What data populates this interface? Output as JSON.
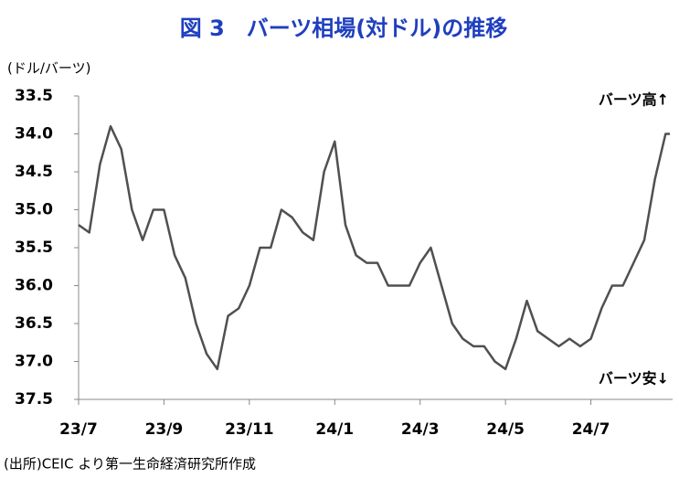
{
  "chart_data": {
    "type": "line",
    "title": "図 3　バーツ相場(対ドル)の推移",
    "y_label": "(ドル/バーツ)",
    "annotations": [
      "バーツ高↑",
      "バーツ安↓"
    ],
    "source": "(出所)CEIC より第一生命経済研究所作成",
    "y_inverted": true,
    "ylim": [
      33.5,
      37.5
    ],
    "yticks": [
      33.5,
      {
        "value": 34,
        "label": "34.0"
      },
      34.5,
      {
        "value": 35,
        "label": "35.0"
      },
      35.5,
      {
        "value": 36,
        "label": "36.0"
      },
      36.5,
      {
        "value": 37,
        "label": "37.0"
      },
      37.5
    ],
    "xlim": [
      0,
      13.85
    ],
    "xticks": [
      {
        "value": 0,
        "label": "23/7"
      },
      {
        "value": 2,
        "label": "23/9"
      },
      {
        "value": 4,
        "label": "23/11"
      },
      {
        "value": 6,
        "label": "24/1"
      },
      {
        "value": 8,
        "label": "24/3"
      },
      {
        "value": 10,
        "label": "24/5"
      },
      {
        "value": 12,
        "label": "24/7"
      }
    ],
    "x": [
      0,
      0.25,
      0.5,
      0.75,
      1,
      1.25,
      1.5,
      1.75,
      2,
      2.25,
      2.5,
      2.75,
      3,
      3.25,
      3.5,
      3.75,
      4,
      4.25,
      4.5,
      4.75,
      5,
      5.25,
      5.5,
      5.75,
      6,
      6.25,
      6.5,
      6.75,
      7,
      7.25,
      7.5,
      7.75,
      8,
      8.25,
      8.5,
      8.75,
      9,
      9.25,
      9.5,
      9.75,
      10,
      10.25,
      10.5,
      10.75,
      11,
      11.25,
      11.5,
      11.75,
      12,
      12.25,
      12.5,
      12.75,
      13,
      13.25,
      13.5,
      13.75,
      13.85
    ],
    "series": [
      {
        "color": "#505050",
        "values": [
          35.2,
          35.3,
          34.4,
          33.9,
          34.2,
          35.0,
          35.4,
          35.0,
          35.0,
          35.6,
          35.9,
          36.5,
          36.9,
          37.1,
          36.4,
          36.3,
          36.0,
          35.5,
          35.5,
          35.0,
          35.1,
          35.3,
          35.4,
          34.5,
          34.1,
          35.2,
          35.6,
          35.7,
          35.7,
          36.0,
          36.0,
          36.0,
          35.7,
          35.5,
          36.0,
          36.5,
          36.7,
          36.8,
          36.8,
          37.0,
          37.1,
          36.7,
          36.2,
          36.6,
          36.7,
          36.8,
          36.7,
          36.8,
          36.7,
          36.3,
          36.0,
          36.0,
          35.7,
          35.4,
          34.6,
          34.0,
          34.0
        ]
      }
    ]
  }
}
